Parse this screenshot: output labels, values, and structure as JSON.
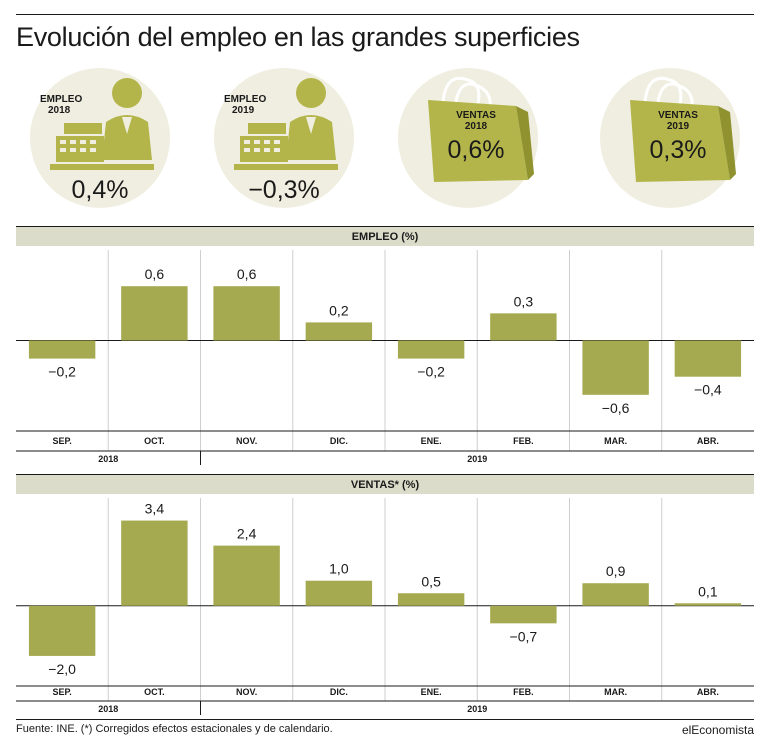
{
  "header": {
    "title": "Evolución del empleo en las grandes superficies"
  },
  "colors": {
    "bar": "#a5a94f",
    "band": "#dcdccb",
    "circle": "#efeee0",
    "icon": "#b3b54a"
  },
  "kpis": [
    {
      "label_line1": "EMPLEO",
      "label_line2": "2018",
      "value": "0,4%",
      "icon": "cashier-icon"
    },
    {
      "label_line1": "EMPLEO",
      "label_line2": "2019",
      "value": "−0,3%",
      "icon": "cashier-icon"
    },
    {
      "label_line1": "VENTAS",
      "label_line2": "2018",
      "value": "0,6%",
      "icon": "shopping-bag-icon"
    },
    {
      "label_line1": "VENTAS",
      "label_line2": "2019",
      "value": "0,3%",
      "icon": "shopping-bag-icon"
    }
  ],
  "chart_data": [
    {
      "type": "bar",
      "title": "EMPLEO (%)",
      "categories": [
        "SEP.",
        "OCT.",
        "NOV.",
        "DIC.",
        "ENE.",
        "FEB.",
        "MAR.",
        "ABR."
      ],
      "values": [
        -0.2,
        0.6,
        0.6,
        0.2,
        -0.2,
        0.3,
        -0.6,
        -0.4
      ],
      "value_labels": [
        "−0,2",
        "0,6",
        "0,6",
        "0,2",
        "−0,2",
        "0,3",
        "−0,6",
        "−0,4"
      ],
      "ylim": [
        -1.0,
        1.0
      ],
      "year_groups": [
        {
          "label": "2018",
          "span": [
            0,
            1
          ]
        },
        {
          "label": "2019",
          "span": [
            2,
            7
          ]
        }
      ]
    },
    {
      "type": "bar",
      "title": "VENTAS* (%)",
      "categories": [
        "SEP.",
        "OCT.",
        "NOV.",
        "DIC.",
        "ENE.",
        "FEB.",
        "MAR.",
        "ABR."
      ],
      "values": [
        -2.0,
        3.4,
        2.4,
        1.0,
        0.5,
        -0.7,
        0.9,
        0.1
      ],
      "value_labels": [
        "−2,0",
        "3,4",
        "2,4",
        "1,0",
        "0,5",
        "−0,7",
        "0,9",
        "0,1"
      ],
      "ylim": [
        -3.2,
        4.3
      ],
      "year_groups": [
        {
          "label": "2018",
          "span": [
            0,
            1
          ]
        },
        {
          "label": "2019",
          "span": [
            2,
            7
          ]
        }
      ]
    }
  ],
  "footer": {
    "source": "Fuente: INE. (*) Corregidos efectos estacionales y de calendario.",
    "brand": "elEconomista"
  }
}
